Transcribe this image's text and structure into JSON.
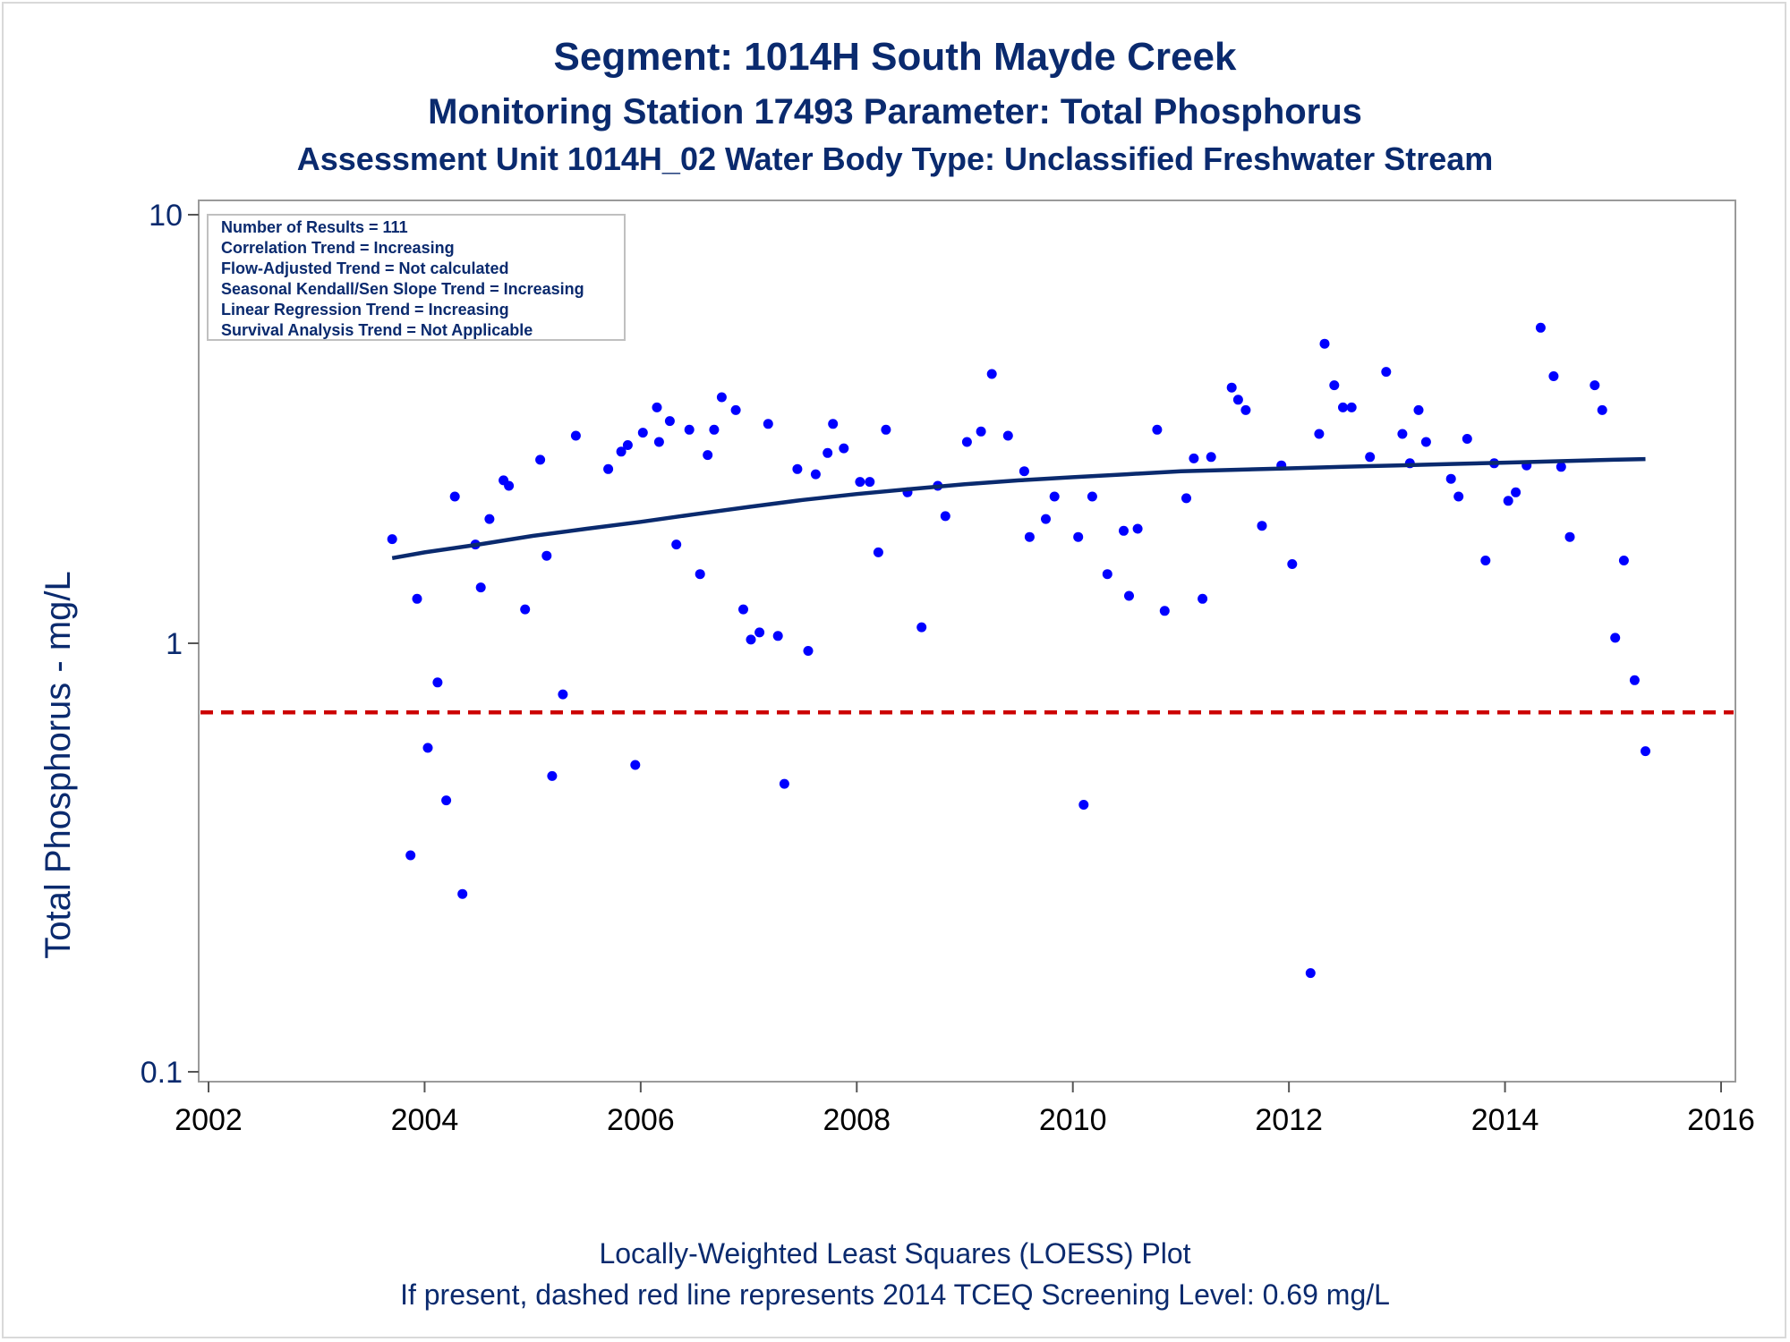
{
  "chart_data": {
    "type": "scatter",
    "title": "Segment: 1014H  South Mayde Creek",
    "subtitle": "Monitoring Station 17493 Parameter: Total Phosphorus",
    "subtitle2": "Assessment Unit 1014H_02   Water Body Type: Unclassified Freshwater Stream",
    "xlabel": "",
    "ylabel": "Total Phosphorus - mg/L",
    "footnote1": "Locally-Weighted Least Squares (LOESS) Plot",
    "footnote2": "If present, dashed red line represents 2014 TCEQ Screening Level: 0.69 mg/L",
    "xlim": [
      2002,
      2016
    ],
    "ylim": [
      0.1,
      10
    ],
    "yscale": "log",
    "x_ticks": [
      "2002",
      "2004",
      "2006",
      "2008",
      "2010",
      "2012",
      "2014",
      "2016"
    ],
    "y_ticks": [
      {
        "value": 0.1,
        "label": "0.1"
      },
      {
        "value": 1,
        "label": "1"
      },
      {
        "value": 10,
        "label": "10"
      }
    ],
    "grid": false,
    "info_box": [
      "Number of Results = 111",
      "Correlation Trend = Increasing",
      "Flow-Adjusted Trend = Not calculated",
      "Seasonal Kendall/Sen Slope Trend = Increasing",
      "Linear Regression Trend = Increasing",
      "Survival Analysis Trend = Not Applicable"
    ],
    "screening_level": 0.69,
    "colors": {
      "points": "#0000ff",
      "loess": "#0a2a6e",
      "screening": "#cc0000",
      "text": "#0a2a6e"
    },
    "points": [
      [
        2003.7,
        1.75
      ],
      [
        2003.87,
        0.32
      ],
      [
        2003.93,
        1.27
      ],
      [
        2004.03,
        0.57
      ],
      [
        2004.12,
        0.81
      ],
      [
        2004.2,
        0.43
      ],
      [
        2004.28,
        2.2
      ],
      [
        2004.35,
        0.26
      ],
      [
        2004.47,
        1.7
      ],
      [
        2004.52,
        1.35
      ],
      [
        2004.6,
        1.95
      ],
      [
        2004.73,
        2.4
      ],
      [
        2004.78,
        2.33
      ],
      [
        2004.93,
        1.2
      ],
      [
        2005.07,
        2.68
      ],
      [
        2005.13,
        1.6
      ],
      [
        2005.18,
        0.49
      ],
      [
        2005.28,
        0.76
      ],
      [
        2005.4,
        3.05
      ],
      [
        2005.7,
        2.55
      ],
      [
        2005.82,
        2.8
      ],
      [
        2005.88,
        2.9
      ],
      [
        2005.95,
        0.52
      ],
      [
        2006.02,
        3.1
      ],
      [
        2006.15,
        3.55
      ],
      [
        2006.17,
        2.95
      ],
      [
        2006.27,
        3.3
      ],
      [
        2006.33,
        1.7
      ],
      [
        2006.45,
        3.15
      ],
      [
        2006.55,
        1.45
      ],
      [
        2006.62,
        2.75
      ],
      [
        2006.68,
        3.15
      ],
      [
        2006.75,
        3.75
      ],
      [
        2006.88,
        3.5
      ],
      [
        2006.95,
        1.2
      ],
      [
        2007.02,
        1.02
      ],
      [
        2007.1,
        1.06
      ],
      [
        2007.18,
        3.25
      ],
      [
        2007.27,
        1.04
      ],
      [
        2007.33,
        0.47
      ],
      [
        2007.45,
        2.55
      ],
      [
        2007.55,
        0.96
      ],
      [
        2007.62,
        2.48
      ],
      [
        2007.73,
        2.78
      ],
      [
        2007.78,
        3.25
      ],
      [
        2007.88,
        2.85
      ],
      [
        2008.03,
        2.38
      ],
      [
        2008.12,
        2.38
      ],
      [
        2008.2,
        1.63
      ],
      [
        2008.27,
        3.15
      ],
      [
        2008.47,
        2.25
      ],
      [
        2008.6,
        1.09
      ],
      [
        2008.75,
        2.33
      ],
      [
        2008.82,
        1.98
      ],
      [
        2009.02,
        2.95
      ],
      [
        2009.15,
        3.12
      ],
      [
        2009.25,
        4.25
      ],
      [
        2009.4,
        3.05
      ],
      [
        2009.55,
        2.52
      ],
      [
        2009.6,
        1.77
      ],
      [
        2009.75,
        1.95
      ],
      [
        2009.83,
        2.2
      ],
      [
        2010.05,
        1.77
      ],
      [
        2010.1,
        0.42
      ],
      [
        2010.18,
        2.2
      ],
      [
        2010.32,
        1.45
      ],
      [
        2010.47,
        1.83
      ],
      [
        2010.52,
        1.29
      ],
      [
        2010.6,
        1.85
      ],
      [
        2010.78,
        3.15
      ],
      [
        2010.85,
        1.19
      ],
      [
        2011.05,
        2.18
      ],
      [
        2011.12,
        2.7
      ],
      [
        2011.2,
        1.27
      ],
      [
        2011.28,
        2.72
      ],
      [
        2011.47,
        3.95
      ],
      [
        2011.53,
        3.7
      ],
      [
        2011.6,
        3.5
      ],
      [
        2011.75,
        1.88
      ],
      [
        2011.93,
        2.6
      ],
      [
        2012.03,
        1.53
      ],
      [
        2012.2,
        0.17
      ],
      [
        2012.28,
        3.08
      ],
      [
        2012.33,
        5.0
      ],
      [
        2012.42,
        4.0
      ],
      [
        2012.5,
        3.55
      ],
      [
        2012.58,
        3.55
      ],
      [
        2012.75,
        2.72
      ],
      [
        2012.9,
        4.3
      ],
      [
        2013.05,
        3.08
      ],
      [
        2013.12,
        2.63
      ],
      [
        2013.2,
        3.5
      ],
      [
        2013.27,
        2.95
      ],
      [
        2013.5,
        2.42
      ],
      [
        2013.57,
        2.2
      ],
      [
        2013.65,
        3.0
      ],
      [
        2013.82,
        1.56
      ],
      [
        2013.9,
        2.63
      ],
      [
        2014.03,
        2.15
      ],
      [
        2014.1,
        2.25
      ],
      [
        2014.2,
        2.6
      ],
      [
        2014.33,
        5.45
      ],
      [
        2014.45,
        4.2
      ],
      [
        2014.52,
        2.58
      ],
      [
        2014.6,
        1.77
      ],
      [
        2014.83,
        4.0
      ],
      [
        2014.9,
        3.5
      ],
      [
        2015.02,
        1.03
      ],
      [
        2015.1,
        1.56
      ],
      [
        2015.2,
        0.82
      ],
      [
        2015.3,
        0.56
      ]
    ],
    "loess": [
      [
        2003.7,
        1.58
      ],
      [
        2004.0,
        1.63
      ],
      [
        2004.5,
        1.7
      ],
      [
        2005.0,
        1.78
      ],
      [
        2005.5,
        1.85
      ],
      [
        2006.0,
        1.92
      ],
      [
        2006.5,
        2.0
      ],
      [
        2007.0,
        2.08
      ],
      [
        2007.5,
        2.16
      ],
      [
        2008.0,
        2.23
      ],
      [
        2008.5,
        2.29
      ],
      [
        2009.0,
        2.35
      ],
      [
        2009.5,
        2.4
      ],
      [
        2010.0,
        2.44
      ],
      [
        2010.5,
        2.48
      ],
      [
        2011.0,
        2.52
      ],
      [
        2011.5,
        2.54
      ],
      [
        2012.0,
        2.56
      ],
      [
        2012.5,
        2.58
      ],
      [
        2013.0,
        2.6
      ],
      [
        2013.5,
        2.62
      ],
      [
        2014.0,
        2.64
      ],
      [
        2014.5,
        2.66
      ],
      [
        2015.0,
        2.68
      ],
      [
        2015.3,
        2.69
      ]
    ]
  }
}
